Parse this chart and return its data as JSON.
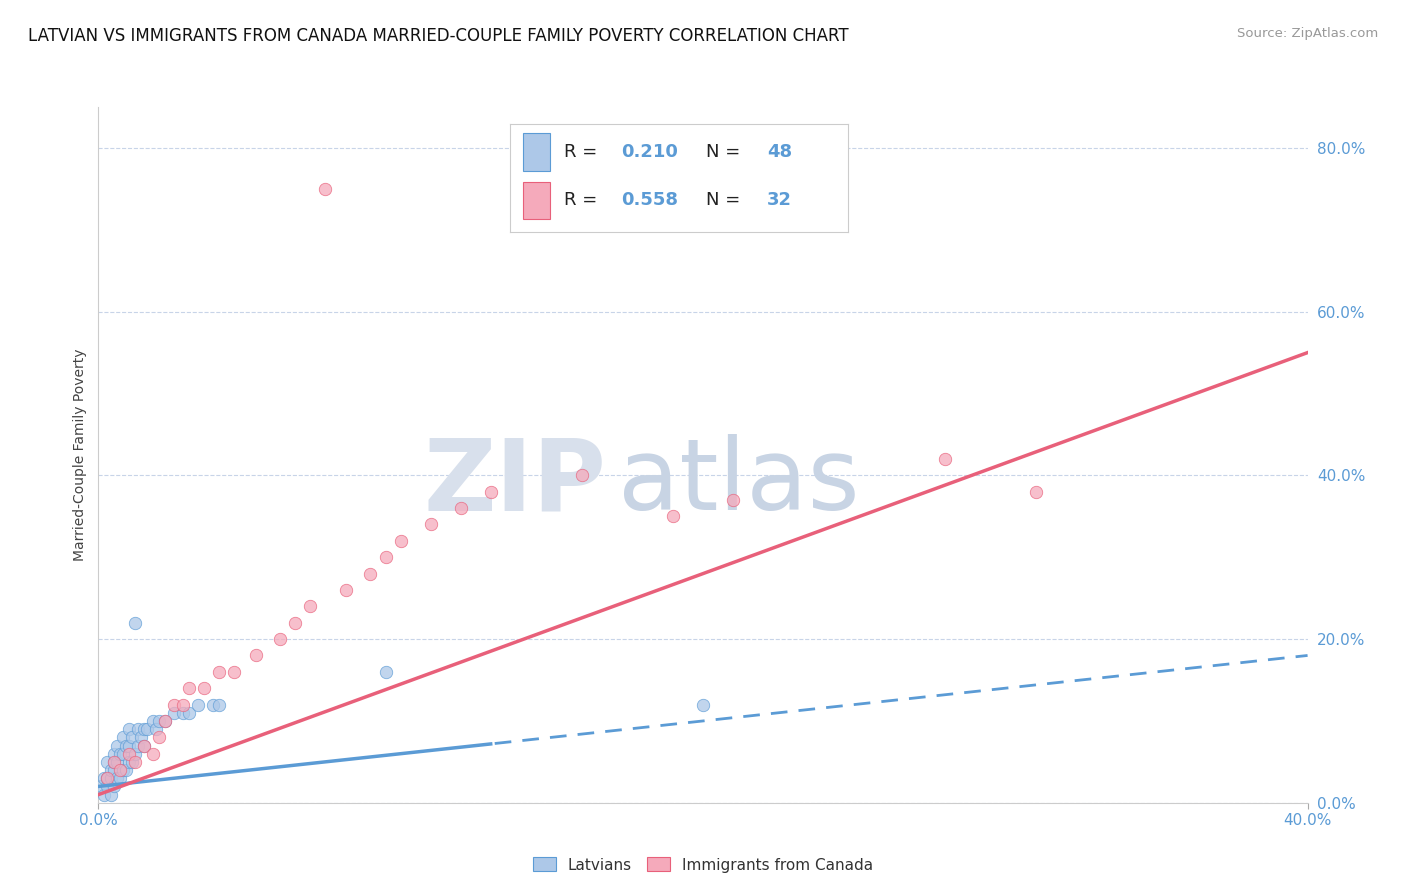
{
  "title": "LATVIAN VS IMMIGRANTS FROM CANADA MARRIED-COUPLE FAMILY POVERTY CORRELATION CHART",
  "source": "Source: ZipAtlas.com",
  "ylabel": "Married-Couple Family Poverty",
  "xlim": [
    0.0,
    0.4
  ],
  "ylim": [
    0.0,
    0.85
  ],
  "yticks_right": [
    0.0,
    0.2,
    0.4,
    0.6,
    0.8
  ],
  "latvian_R": 0.21,
  "latvian_N": 48,
  "canada_R": 0.558,
  "canada_N": 32,
  "latvian_color": "#adc8e8",
  "canada_color": "#f5aabb",
  "latvian_line_color": "#5b9bd5",
  "canada_line_color": "#e8607a",
  "background_color": "#ffffff",
  "grid_color": "#c8d4e8",
  "watermark_zip_color": "#d0d8e8",
  "watermark_atlas_color": "#c0cce0",
  "title_fontsize": 12,
  "axis_label_fontsize": 10,
  "tick_fontsize": 11,
  "legend_fontsize": 13,
  "latvian_line_intercept": 0.02,
  "latvian_line_slope": 0.4,
  "canada_line_intercept": 0.01,
  "canada_line_slope": 1.35,
  "lat_x": [
    0.001,
    0.002,
    0.002,
    0.003,
    0.003,
    0.003,
    0.004,
    0.004,
    0.004,
    0.005,
    0.005,
    0.005,
    0.005,
    0.006,
    0.006,
    0.006,
    0.007,
    0.007,
    0.008,
    0.008,
    0.008,
    0.009,
    0.009,
    0.01,
    0.01,
    0.01,
    0.011,
    0.011,
    0.012,
    0.013,
    0.013,
    0.014,
    0.015,
    0.015,
    0.016,
    0.018,
    0.019,
    0.02,
    0.022,
    0.025,
    0.028,
    0.03,
    0.033,
    0.038,
    0.04,
    0.012,
    0.095,
    0.2
  ],
  "lat_y": [
    0.02,
    0.01,
    0.03,
    0.02,
    0.03,
    0.05,
    0.01,
    0.03,
    0.04,
    0.02,
    0.04,
    0.05,
    0.06,
    0.03,
    0.05,
    0.07,
    0.03,
    0.06,
    0.04,
    0.06,
    0.08,
    0.04,
    0.07,
    0.05,
    0.07,
    0.09,
    0.05,
    0.08,
    0.06,
    0.07,
    0.09,
    0.08,
    0.07,
    0.09,
    0.09,
    0.1,
    0.09,
    0.1,
    0.1,
    0.11,
    0.11,
    0.11,
    0.12,
    0.12,
    0.12,
    0.22,
    0.16,
    0.12
  ],
  "can_x": [
    0.003,
    0.005,
    0.007,
    0.01,
    0.012,
    0.015,
    0.018,
    0.02,
    0.022,
    0.025,
    0.028,
    0.03,
    0.035,
    0.04,
    0.045,
    0.052,
    0.06,
    0.065,
    0.07,
    0.075,
    0.082,
    0.09,
    0.095,
    0.1,
    0.11,
    0.12,
    0.13,
    0.16,
    0.19,
    0.21,
    0.28,
    0.31
  ],
  "can_y": [
    0.03,
    0.05,
    0.04,
    0.06,
    0.05,
    0.07,
    0.06,
    0.08,
    0.1,
    0.12,
    0.12,
    0.14,
    0.14,
    0.16,
    0.16,
    0.18,
    0.2,
    0.22,
    0.24,
    0.75,
    0.26,
    0.28,
    0.3,
    0.32,
    0.34,
    0.36,
    0.38,
    0.4,
    0.35,
    0.37,
    0.42,
    0.38
  ]
}
